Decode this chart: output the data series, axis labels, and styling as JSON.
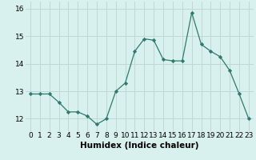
{
  "x": [
    0,
    1,
    2,
    3,
    4,
    5,
    6,
    7,
    8,
    9,
    10,
    11,
    12,
    13,
    14,
    15,
    16,
    17,
    18,
    19,
    20,
    21,
    22,
    23
  ],
  "y": [
    12.9,
    12.9,
    12.9,
    12.6,
    12.25,
    12.25,
    12.1,
    11.8,
    12.0,
    13.0,
    13.3,
    14.45,
    14.9,
    14.85,
    14.15,
    14.1,
    14.1,
    15.85,
    14.7,
    14.45,
    14.25,
    13.75,
    12.9,
    12.0
  ],
  "line_color": "#2e7b6e",
  "marker": "D",
  "marker_size": 2.2,
  "bg_color": "#d8f0ee",
  "grid_color": "#c0d8d5",
  "xlabel": "Humidex (Indice chaleur)",
  "xlim": [
    -0.5,
    23.5
  ],
  "ylim": [
    11.55,
    16.25
  ],
  "yticks": [
    12,
    13,
    14,
    15,
    16
  ],
  "xticks": [
    0,
    1,
    2,
    3,
    4,
    5,
    6,
    7,
    8,
    9,
    10,
    11,
    12,
    13,
    14,
    15,
    16,
    17,
    18,
    19,
    20,
    21,
    22,
    23
  ],
  "xlabel_fontsize": 7.5,
  "tick_fontsize": 6.5
}
